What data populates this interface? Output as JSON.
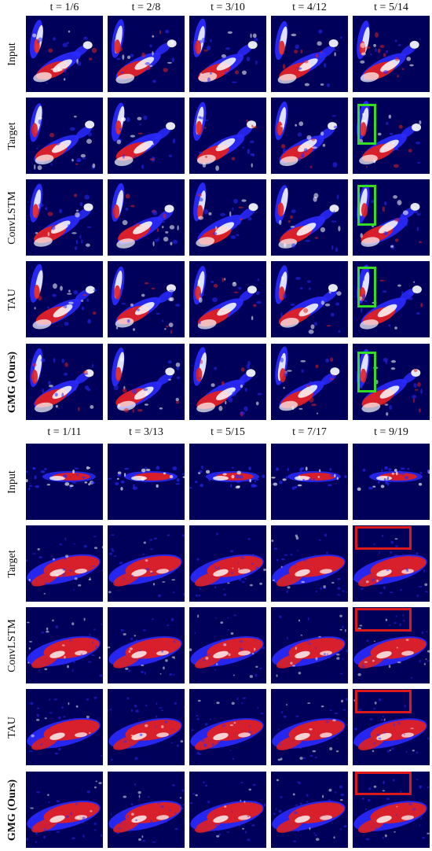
{
  "panels": [
    {
      "id": "top",
      "col_headers": [
        "t = 1/6",
        "t = 2/8",
        "t = 3/10",
        "t = 4/12",
        "t = 5/14"
      ],
      "rows": [
        {
          "label": "Input",
          "bold": false
        },
        {
          "label": "Target",
          "bold": false
        },
        {
          "label": "ConvLSTM",
          "bold": false
        },
        {
          "label": "TAU",
          "bold": false
        },
        {
          "label": "GMG (Ours)",
          "bold": true
        }
      ],
      "highlight": {
        "color": "#33dd22",
        "rows": [
          1,
          2,
          3,
          4
        ],
        "column": 4
      }
    },
    {
      "id": "bottom",
      "col_headers": [
        "t = 1/11",
        "t = 3/13",
        "t = 5/15",
        "t = 7/17",
        "t = 9/19"
      ],
      "rows": [
        {
          "label": "Input",
          "bold": false
        },
        {
          "label": "Target",
          "bold": false
        },
        {
          "label": "ConvLSTM",
          "bold": false
        },
        {
          "label": "TAU",
          "bold": false
        },
        {
          "label": "GMG (Ours)",
          "bold": true
        }
      ],
      "highlight": {
        "color": "#dd1a1a",
        "rows": [
          1,
          2,
          3,
          4
        ],
        "column": 4
      }
    }
  ],
  "colors": {
    "background": "#00005a",
    "high": "#e02020",
    "mid": "#ffffff",
    "low": "#2a2aff"
  }
}
